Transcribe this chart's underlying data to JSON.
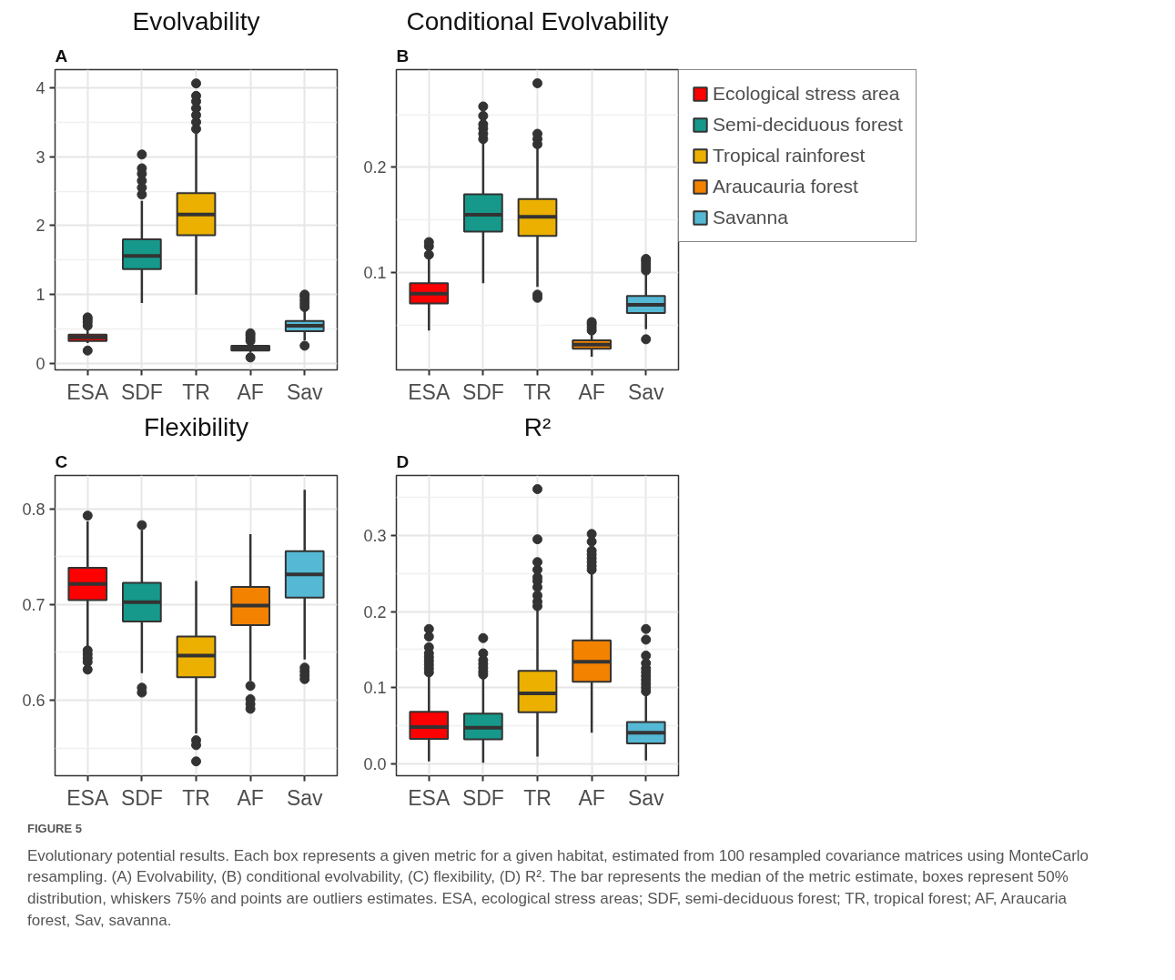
{
  "chart_data": [
    {
      "type": "box",
      "title": "Evolvability",
      "annotations": [
        "A"
      ],
      "categories": [
        "ESA",
        "SDF",
        "TR",
        "AF",
        "Sav"
      ],
      "ylim": [
        -0.09,
        4.26
      ],
      "yticks": [
        0,
        1,
        2,
        3,
        4
      ],
      "grid": true,
      "legend": false,
      "series": [
        {
          "color": "#ff0000",
          "boxes": [
            {
              "low": 0.3,
              "q1": 0.33,
              "median": 0.38,
              "q3": 0.42,
              "high": 0.5,
              "outliers": [
                0.19,
                0.55,
                0.6,
                0.64,
                0.67
              ]
            },
            null,
            null,
            null,
            null
          ]
        },
        {
          "color": "#16998a",
          "boxes": [
            null,
            {
              "low": 0.88,
              "q1": 1.37,
              "median": 1.56,
              "q3": 1.8,
              "high": 2.36,
              "outliers": [
                2.45,
                2.55,
                2.65,
                2.75,
                2.83,
                3.03
              ]
            },
            null,
            null,
            null
          ]
        },
        {
          "color": "#ebb000",
          "boxes": [
            null,
            null,
            {
              "low": 1.0,
              "q1": 1.86,
              "median": 2.16,
              "q3": 2.47,
              "high": 3.33,
              "outliers": [
                3.4,
                3.5,
                3.6,
                3.7,
                3.8,
                3.88,
                4.06
              ]
            },
            null,
            null
          ]
        },
        {
          "color": "#f38200",
          "boxes": [
            null,
            null,
            null,
            {
              "low": 0.16,
              "q1": 0.19,
              "median": 0.22,
              "q3": 0.26,
              "high": 0.3,
              "outliers": [
                0.09,
                0.33,
                0.37,
                0.41,
                0.44
              ]
            },
            null
          ]
        },
        {
          "color": "#55b8d4",
          "boxes": [
            null,
            null,
            null,
            null,
            {
              "low": 0.34,
              "q1": 0.47,
              "median": 0.55,
              "q3": 0.62,
              "high": 0.77,
              "outliers": [
                0.26,
                0.82,
                0.87,
                0.92,
                0.97,
                1.0
              ]
            }
          ]
        }
      ]
    },
    {
      "type": "box",
      "title": "Conditional Evolvability",
      "annotations": [
        "B"
      ],
      "categories": [
        "ESA",
        "SDF",
        "TR",
        "AF",
        "Sav"
      ],
      "ylim": [
        0.0075,
        0.293
      ],
      "yticks": [
        0.1,
        0.2
      ],
      "grid": true,
      "legend": "right",
      "series": [
        {
          "name": "Ecological stress area",
          "color": "#ff0000",
          "boxes": [
            {
              "low": 0.045,
              "q1": 0.0706,
              "median": 0.08,
              "q3": 0.09,
              "high": 0.114,
              "outliers": [
                0.117,
                0.125,
                0.129
              ]
            },
            null,
            null,
            null,
            null
          ]
        },
        {
          "name": "Semi-deciduous forest",
          "color": "#16998a",
          "boxes": [
            null,
            {
              "low": 0.09,
              "q1": 0.139,
              "median": 0.155,
              "q3": 0.1745,
              "high": 0.2235,
              "outliers": [
                0.227,
                0.232,
                0.237,
                0.241,
                0.249,
                0.258
              ]
            },
            null,
            null,
            null
          ]
        },
        {
          "name": "Tropical rainforest",
          "color": "#ebb000",
          "boxes": [
            null,
            null,
            {
              "low": 0.0864,
              "q1": 0.135,
              "median": 0.153,
              "q3": 0.17,
              "high": 0.218,
              "outliers": [
                0.076,
                0.079,
                0.222,
                0.227,
                0.232,
                0.28
              ]
            },
            null,
            null
          ]
        },
        {
          "name": "Araucauria forest",
          "color": "#f38200",
          "boxes": [
            null,
            null,
            null,
            {
              "low": 0.02,
              "q1": 0.0277,
              "median": 0.0315,
              "q3": 0.0357,
              "high": 0.042,
              "outliers": [
                0.045,
                0.048,
                0.051,
                0.053
              ]
            },
            null
          ]
        },
        {
          "name": "Savanna",
          "color": "#55b8d4",
          "boxes": [
            null,
            null,
            null,
            null,
            {
              "low": 0.0463,
              "q1": 0.0615,
              "median": 0.0693,
              "q3": 0.0778,
              "high": 0.0989,
              "outliers": [
                0.0366,
                0.102,
                0.105,
                0.108,
                0.111,
                0.113
              ]
            }
          ]
        }
      ]
    },
    {
      "type": "box",
      "title": "Flexibility",
      "annotations": [
        "C"
      ],
      "categories": [
        "ESA",
        "SDF",
        "TR",
        "AF",
        "Sav"
      ],
      "ylim": [
        0.521,
        0.835
      ],
      "yticks": [
        0.6,
        0.7,
        0.8
      ],
      "grid": true,
      "legend": false,
      "series": [
        {
          "color": "#ff0000",
          "boxes": [
            {
              "low": 0.656,
              "q1": 0.7046,
              "median": 0.7215,
              "q3": 0.7385,
              "high": 0.787,
              "outliers": [
                0.632,
                0.64,
                0.644,
                0.648,
                0.652,
                0.793
              ]
            },
            null,
            null,
            null,
            null
          ]
        },
        {
          "color": "#16998a",
          "boxes": [
            null,
            {
              "low": 0.6284,
              "q1": 0.6824,
              "median": 0.7024,
              "q3": 0.7228,
              "high": 0.778,
              "outliers": [
                0.608,
                0.613,
                0.783
              ]
            },
            null,
            null,
            null
          ]
        },
        {
          "color": "#ebb000",
          "boxes": [
            null,
            null,
            {
              "low": 0.5653,
              "q1": 0.6241,
              "median": 0.6466,
              "q3": 0.6666,
              "high": 0.7246,
              "outliers": [
                0.536,
                0.553,
                0.558
              ]
            },
            null,
            null
          ]
        },
        {
          "color": "#f38200",
          "boxes": [
            null,
            null,
            null,
            {
              "low": 0.6205,
              "q1": 0.6785,
              "median": 0.699,
              "q3": 0.7185,
              "high": 0.7737,
              "outliers": [
                0.591,
                0.596,
                0.601,
                0.615
              ]
            },
            null
          ]
        },
        {
          "color": "#55b8d4",
          "boxes": [
            null,
            null,
            null,
            null,
            {
              "low": 0.6426,
              "q1": 0.7073,
              "median": 0.7316,
              "q3": 0.7558,
              "high": 0.82,
              "outliers": [
                0.622,
                0.626,
                0.63,
                0.634
              ]
            }
          ]
        }
      ]
    },
    {
      "type": "box",
      "title": "R²",
      "annotations": [
        "D",
        "FIGURE 5",
        "Evolutionary potential results. Each box represents a given metric for a given habitat, estimated from 100 resampled covariance matrices using MonteCarlo resampling. (A) Evolvability, (B) conditional evolvability, (C) flexibility, (D) R². The bar represents the median of the metric estimate, boxes represent 50% distribution, whiskers 75% and points are outliers estimates. ESA, ecological stress areas; SDF, semi-deciduous forest; TR, tropical forest; AF, Araucaria forest, Sav, savanna."
      ],
      "categories": [
        "ESA",
        "SDF",
        "TR",
        "AF",
        "Sav"
      ],
      "ylim": [
        -0.016,
        0.379
      ],
      "yticks": [
        {
          "value": 0,
          "label": "0.0"
        },
        0.1,
        0.2,
        0.3
      ],
      "grid": true,
      "legend": false,
      "series": [
        {
          "color": "#ff0000",
          "boxes": [
            {
              "low": 0.003,
              "q1": 0.0325,
              "median": 0.048,
              "q3": 0.068,
              "high": 0.116,
              "outliers": [
                0.12,
                0.125,
                0.13,
                0.135,
                0.14,
                0.145,
                0.153,
                0.167,
                0.177
              ]
            },
            null,
            null,
            null,
            null
          ]
        },
        {
          "color": "#16998a",
          "boxes": [
            null,
            {
              "low": 0.001,
              "q1": 0.0318,
              "median": 0.047,
              "q3": 0.0658,
              "high": 0.113,
              "outliers": [
                0.117,
                0.121,
                0.126,
                0.131,
                0.136,
                0.145,
                0.165
              ]
            },
            null,
            null,
            null
          ]
        },
        {
          "color": "#ebb000",
          "boxes": [
            null,
            null,
            {
              "low": 0.009,
              "q1": 0.0674,
              "median": 0.0922,
              "q3": 0.122,
              "high": 0.202,
              "outliers": [
                0.207,
                0.213,
                0.221,
                0.232,
                0.24,
                0.245,
                0.255,
                0.265,
                0.295,
                0.361
              ]
            },
            null,
            null
          ]
        },
        {
          "color": "#f38200",
          "boxes": [
            null,
            null,
            null,
            {
              "low": 0.0406,
              "q1": 0.1075,
              "median": 0.134,
              "q3": 0.162,
              "high": 0.25,
              "outliers": [
                0.255,
                0.26,
                0.265,
                0.27,
                0.275,
                0.28,
                0.292,
                0.302
              ]
            },
            null
          ]
        },
        {
          "color": "#55b8d4",
          "boxes": [
            null,
            null,
            null,
            null,
            {
              "low": 0.004,
              "q1": 0.0264,
              "median": 0.0406,
              "q3": 0.0547,
              "high": 0.091,
              "outliers": [
                0.095,
                0.1,
                0.105,
                0.11,
                0.115,
                0.12,
                0.125,
                0.132,
                0.142,
                0.163,
                0.177
              ]
            }
          ]
        }
      ]
    }
  ]
}
